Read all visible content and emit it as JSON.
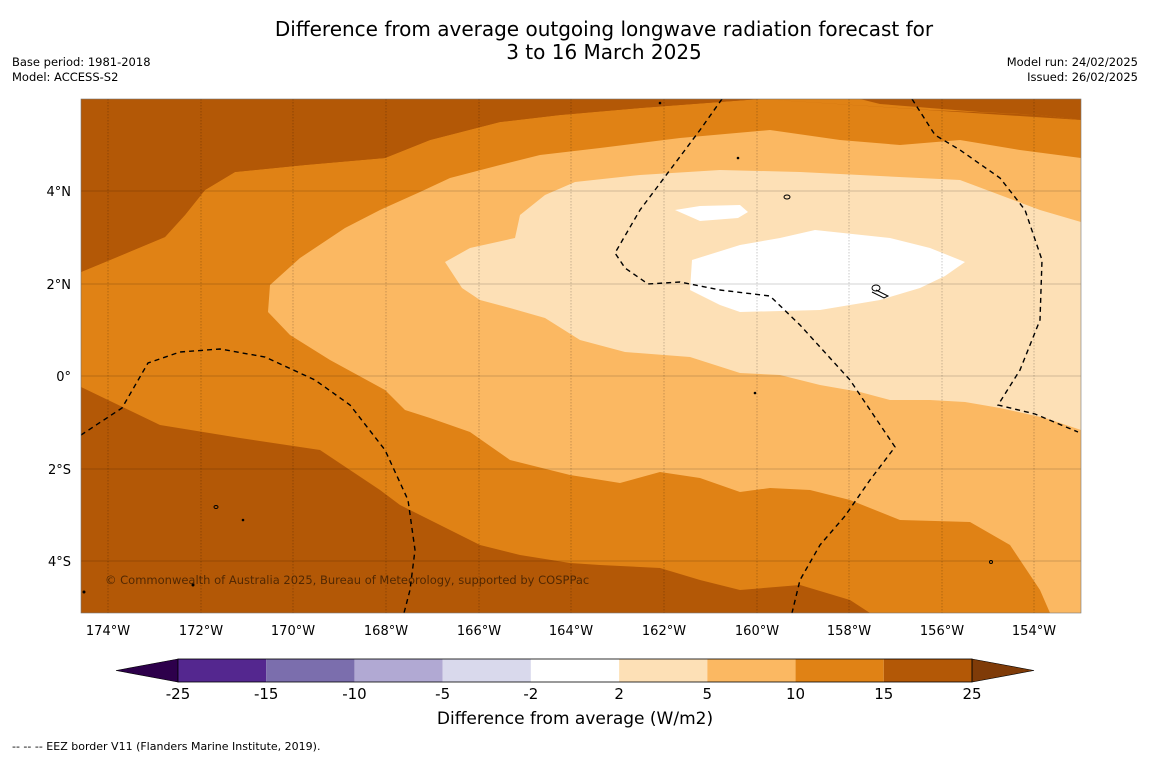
{
  "title_line1": "Difference from average outgoing longwave radiation forecast for",
  "title_line2": "3 to 16 March 2025",
  "base_period": "Base period: 1981-2018",
  "model": "Model: ACCESS-S2",
  "model_run": "Model run: 24/02/2025",
  "issued": "Issued: 26/02/2025",
  "copyright": "© Commonwealth of Australia 2025, Bureau of Meteorology, supported by COSPPac",
  "lon_labels": [
    "174°W",
    "172°W",
    "170°W",
    "168°W",
    "166°W",
    "164°W",
    "162°W",
    "160°W",
    "158°W",
    "156°W",
    "154°W"
  ],
  "lat_labels": [
    "4°N",
    "2°N",
    "0°",
    "2°S",
    "4°S"
  ],
  "colorbar": {
    "bins": [
      {
        "lo": -25,
        "hi": -15,
        "color": "#54278f"
      },
      {
        "lo": -15,
        "hi": -10,
        "color": "#7b6ead"
      },
      {
        "lo": -10,
        "hi": -5,
        "color": "#b1a9d3"
      },
      {
        "lo": -5,
        "hi": -2,
        "color": "#d9d9ec"
      },
      {
        "lo": -2,
        "hi": 2,
        "color": "#ffffff"
      },
      {
        "lo": 2,
        "hi": 5,
        "color": "#fde0b6"
      },
      {
        "lo": 5,
        "hi": 10,
        "color": "#fbb862"
      },
      {
        "lo": 10,
        "hi": 15,
        "color": "#e08215"
      },
      {
        "lo": 15,
        "hi": 25,
        "color": "#b35806"
      }
    ],
    "under_color": "#2d004b",
    "over_color": "#7f3b08",
    "tick_labels": [
      "-25",
      "-15",
      "-10",
      "-5",
      "-2",
      "2",
      "5",
      "10",
      "15",
      "25"
    ],
    "label": "Difference from average (W/m2)"
  },
  "eez_legend": "--  --  -- EEZ border V11 (Flanders Marine Institute, 2019)."
}
